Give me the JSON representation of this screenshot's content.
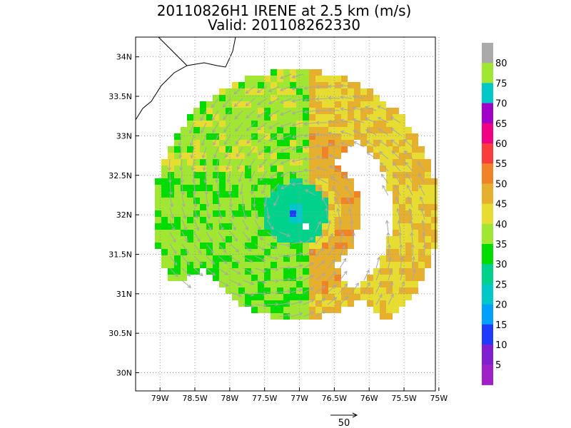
{
  "chart_data": {
    "type": "heatmap",
    "title_line1": "20110826H1 IRENE at 2.5 km (m/s)",
    "title_line2": "Valid: 201108262330",
    "x_ticks": [
      {
        "value": -79.0,
        "label": "79W"
      },
      {
        "value": -78.5,
        "label": "78.5W"
      },
      {
        "value": -78.0,
        "label": "78W"
      },
      {
        "value": -77.5,
        "label": "77.5W"
      },
      {
        "value": -77.0,
        "label": "77W"
      },
      {
        "value": -76.5,
        "label": "76.5W"
      },
      {
        "value": -76.0,
        "label": "76W"
      },
      {
        "value": -75.5,
        "label": "75.5W"
      },
      {
        "value": -75.0,
        "label": "75W"
      }
    ],
    "y_ticks": [
      {
        "value": 30.0,
        "label": "30N"
      },
      {
        "value": 30.5,
        "label": "30.5N"
      },
      {
        "value": 31.0,
        "label": "31N"
      },
      {
        "value": 31.5,
        "label": "31.5N"
      },
      {
        "value": 32.0,
        "label": "32N"
      },
      {
        "value": 32.5,
        "label": "32.5N"
      },
      {
        "value": 33.0,
        "label": "33N"
      },
      {
        "value": 33.5,
        "label": "33.5N"
      },
      {
        "value": 34.0,
        "label": "34N"
      }
    ],
    "xlim": [
      -79.35,
      -75.05
    ],
    "ylim": [
      29.77,
      34.25
    ],
    "grid": true,
    "storm_center": {
      "lon": -77.05,
      "lat": 32.03
    },
    "colorbar": {
      "levels": [
        {
          "upper": 5,
          "color": "#a020c8"
        },
        {
          "upper": 10,
          "color": "#7f1fd0"
        },
        {
          "upper": 15,
          "color": "#1e3cff"
        },
        {
          "upper": 20,
          "color": "#00a0ff"
        },
        {
          "upper": 25,
          "color": "#00c8c8"
        },
        {
          "upper": 30,
          "color": "#00d28c"
        },
        {
          "upper": 35,
          "color": "#00dc00"
        },
        {
          "upper": 40,
          "color": "#a0e632"
        },
        {
          "upper": 45,
          "color": "#e6dc32"
        },
        {
          "upper": 50,
          "color": "#e6af2d"
        },
        {
          "upper": 55,
          "color": "#f08228"
        },
        {
          "upper": 60,
          "color": "#fa3c3c"
        },
        {
          "upper": 65,
          "color": "#f00082"
        },
        {
          "upper": 70,
          "color": "#a000c8"
        },
        {
          "upper": 75,
          "color": "#00c8c8"
        },
        {
          "upper": 80,
          "color": "#a0e632"
        },
        {
          "upper": null,
          "color": "#aaaaaa"
        }
      ],
      "labels": [
        "5",
        "10",
        "15",
        "20",
        "25",
        "30",
        "35",
        "40",
        "45",
        "50",
        "55",
        "60",
        "65",
        "70",
        "75",
        "80"
      ]
    },
    "reference_vector": {
      "label": "50"
    }
  }
}
